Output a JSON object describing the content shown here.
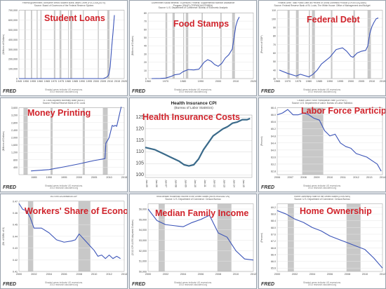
{
  "colors": {
    "line": "#3b54b8",
    "recession": "#c8c8c8",
    "title": "#d0232b",
    "hic_line": "#3a6a8a"
  },
  "fred": {
    "logo": "FRED",
    "shaded_note": "Shaded areas indicate US recessions.",
    "site": "2013 research.stlouisfed.org"
  },
  "chart_data": [
    {
      "id": "student_loans",
      "type": "line",
      "title": "Student Loans",
      "header": [
        "Federal government; consumer credit; student loans; asset, Level (FGCCSAQ027S)",
        "Source: Board of Governors of the Federal Reserve System"
      ],
      "ylabel": "(Millions of Dollars)",
      "xlim": [
        1945,
        2020
      ],
      "ylim": [
        0,
        700000
      ],
      "xticks": [
        1945,
        1950,
        1955,
        1960,
        1965,
        1970,
        1975,
        1980,
        1985,
        1990,
        1995,
        2000,
        2005,
        2010,
        2015,
        2020
      ],
      "yticks": [
        0,
        100000,
        200000,
        300000,
        400000,
        500000,
        600000,
        700000
      ],
      "ytick_labels": [
        "0",
        "100,000",
        "200,000",
        "300,000",
        "400,000",
        "500,000",
        "600,000",
        "700,000"
      ],
      "recessions": [
        [
          1948.9,
          1949.8
        ],
        [
          1953.5,
          1954.4
        ],
        [
          1957.6,
          1958.3
        ],
        [
          1960.3,
          1961.1
        ],
        [
          1969.9,
          1970.9
        ],
        [
          1973.9,
          1975.2
        ],
        [
          1980.0,
          1980.5
        ],
        [
          1981.5,
          1982.9
        ],
        [
          1990.5,
          1991.2
        ],
        [
          2001.2,
          2001.9
        ],
        [
          2007.9,
          2009.5
        ]
      ],
      "x": [
        1945,
        1965,
        1970,
        1980,
        1990,
        2000,
        2005,
        2006,
        2007,
        2008,
        2009,
        2010,
        2011,
        2012,
        2013
      ],
      "y": [
        0,
        0,
        0,
        0,
        0,
        0,
        0,
        5000,
        10000,
        20000,
        40000,
        120000,
        310000,
        470000,
        650000
      ]
    },
    {
      "id": "food_stamps",
      "type": "line",
      "title": "Food Stamps",
      "header": [
        "Government social benefits: To persons: Federal: Supplemental Nutrition Assistance",
        "Program (SNAP) (TRP6001A027NBEA)",
        "Source: U.S. Department of Commerce: Bureau of Economic Analysis"
      ],
      "ylabel": "(Billions of Dollars)",
      "xlim": [
        1960,
        2020
      ],
      "ylim": [
        0,
        80
      ],
      "xticks": [
        1960,
        1970,
        1980,
        1990,
        2000,
        2010,
        2020
      ],
      "yticks": [
        0,
        10,
        20,
        30,
        40,
        50,
        60,
        70,
        80
      ],
      "ytick_labels": [
        "0",
        "10",
        "20",
        "30",
        "40",
        "50",
        "60",
        "70",
        "80"
      ],
      "recessions": [
        [
          1969.9,
          1970.9
        ],
        [
          1973.9,
          1975.2
        ],
        [
          1980.0,
          1980.5
        ],
        [
          1981.5,
          1982.9
        ],
        [
          1990.5,
          1991.2
        ],
        [
          2001.2,
          2001.9
        ],
        [
          2007.9,
          2009.5
        ]
      ],
      "x": [
        1962,
        1967,
        1970,
        1973,
        1975,
        1978,
        1980,
        1983,
        1986,
        1989,
        1992,
        1994,
        1996,
        1998,
        2000,
        2002,
        2004,
        2006,
        2008,
        2009,
        2010,
        2011,
        2012
      ],
      "y": [
        0,
        0.2,
        0.6,
        2.5,
        4.5,
        5.5,
        8.5,
        11,
        10.5,
        11.5,
        20,
        23,
        21,
        17,
        15,
        18.5,
        25,
        29,
        36,
        50,
        64,
        71,
        75
      ]
    },
    {
      "id": "federal_debt",
      "type": "line",
      "title": "Federal Debt",
      "header": [
        "Federal Debt: Total Public Debt as Percent of Gross Domestic Product (GFDEGDQ188S)",
        "Source: Federal Reserve Bank of St. Louis; The White House: Office of Management and Budget"
      ],
      "ylabel": "(Percent of GDP)",
      "xlim": [
        1965,
        2015
      ],
      "ylim": [
        30,
        110
      ],
      "xticks": [
        1965,
        1970,
        1975,
        1980,
        1985,
        1990,
        1995,
        2000,
        2005,
        2010,
        2015
      ],
      "yticks": [
        30,
        40,
        50,
        60,
        70,
        80,
        90,
        100,
        110
      ],
      "ytick_labels": [
        "30",
        "40",
        "50",
        "60",
        "70",
        "80",
        "90",
        "100",
        "110"
      ],
      "recessions": [
        [
          1969.9,
          1970.9
        ],
        [
          1973.9,
          1975.2
        ],
        [
          1980.0,
          1980.5
        ],
        [
          1981.5,
          1982.9
        ],
        [
          1990.5,
          1991.2
        ],
        [
          2001.2,
          2001.9
        ],
        [
          2007.9,
          2009.5
        ]
      ],
      "x": [
        1966,
        1970,
        1974,
        1976,
        1980,
        1982,
        1984,
        1986,
        1990,
        1993,
        1996,
        1998,
        2000,
        2001,
        2003,
        2005,
        2007,
        2008,
        2009,
        2010,
        2011,
        2012,
        2013
      ],
      "y": [
        40,
        36,
        33,
        35,
        32,
        35,
        40,
        47,
        55,
        64,
        66,
        62,
        56,
        55,
        60,
        62,
        63,
        68,
        83,
        91,
        96,
        100,
        101
      ]
    },
    {
      "id": "money_printing",
      "type": "line",
      "title": "Money Printing",
      "header": [
        "St. Louis Adjusted Monetary Base (BASE)",
        "Source: Federal Reserve Bank of St. Louis"
      ],
      "ylabel": "(Billions of Dollars)",
      "xlim": [
        1980,
        2015
      ],
      "ylim": [
        0,
        3600
      ],
      "xticks": [
        1985,
        1990,
        1995,
        2000,
        2005,
        2010,
        2015
      ],
      "yticks": [
        400,
        800,
        1200,
        1600,
        2000,
        2400,
        2800,
        3200,
        3600
      ],
      "ytick_labels": [
        "400",
        "800",
        "1,200",
        "1,600",
        "2,000",
        "2,400",
        "2,800",
        "3,200",
        "3,600"
      ],
      "recessions": [
        [
          1981.5,
          1982.9
        ],
        [
          1990.5,
          1991.2
        ],
        [
          2001.2,
          2001.9
        ],
        [
          2007.9,
          2009.5
        ]
      ],
      "x": [
        1984,
        1990,
        1995,
        2000,
        2005,
        2008.6,
        2008.9,
        2009.5,
        2010,
        2011,
        2011.5,
        2012,
        2012.5,
        2013,
        2013.5,
        2014
      ],
      "y": [
        200,
        270,
        420,
        580,
        760,
        860,
        1700,
        1850,
        2000,
        2650,
        2600,
        2650,
        2600,
        2950,
        3300,
        3650
      ]
    },
    {
      "id": "health_insurance_costs",
      "type": "line",
      "title": "Health Insurance Costs",
      "subtitle": "Health Insurance CPI",
      "source": "(Bureau of Labor Statistics)",
      "xlim": [
        2005.0,
        2016.0
      ],
      "ylim": [
        99,
        126
      ],
      "xticks": [
        2005.0,
        2006.0,
        2007.0,
        2008.0,
        2009.0,
        2010.0,
        2011.0,
        2012.0,
        2013.0,
        2014.0,
        2015.0
      ],
      "xtick_labels": [
        "Jan-05",
        "Jan-06",
        "Jan-07",
        "Jan-08",
        "Jan-09",
        "Jan-10",
        "Jan-11",
        "Jan-12",
        "Jan-13",
        "Jan-14",
        "Jan-15"
      ],
      "yticks": [
        100,
        105,
        110,
        115,
        120,
        125
      ],
      "ytick_labels": [
        "100",
        "105",
        "110",
        "115",
        "120",
        "125"
      ],
      "recessions": [],
      "x": [
        2005.0,
        2005.5,
        2006.0,
        2006.5,
        2007.0,
        2007.5,
        2008.0,
        2008.5,
        2009.0,
        2009.5,
        2010.0,
        2010.5,
        2011.0,
        2011.5,
        2012.0,
        2012.5,
        2013.0,
        2013.5,
        2014.0,
        2014.5,
        2015.0,
        2015.5,
        2015.8
      ],
      "y": [
        112,
        111.5,
        111,
        110,
        109,
        108,
        107,
        106,
        104.5,
        104,
        104.5,
        107,
        111,
        114,
        117,
        118.5,
        120,
        121,
        122.5,
        123,
        124,
        124,
        124.5
      ]
    },
    {
      "id": "labor_force_participation",
      "type": "line",
      "title": "Labor Force Participation",
      "header": [
        "Civilian Labor Force Participation Rate (CIVPART)",
        "Source: U.S. Department of Labor: Bureau of Labor Statistics"
      ],
      "ylabel": "(Percent)",
      "xlim": [
        2006,
        2014
      ],
      "ylim": [
        62.6,
        66.4
      ],
      "xticks": [
        2006,
        2007,
        2008,
        2009,
        2010,
        2011,
        2012,
        2013,
        2014
      ],
      "yticks": [
        62.8,
        63.2,
        63.6,
        64.0,
        64.4,
        64.8,
        65.2,
        65.6,
        66.0,
        66.4
      ],
      "ytick_labels": [
        "62.8",
        "63.2",
        "63.6",
        "64.0",
        "64.4",
        "64.8",
        "65.2",
        "65.6",
        "66.0",
        "66.4"
      ],
      "recessions": [
        [
          2007.9,
          2009.5
        ]
      ],
      "x": [
        2006.0,
        2006.4,
        2006.8,
        2007.2,
        2007.6,
        2008.0,
        2008.4,
        2008.8,
        2009.2,
        2009.6,
        2010.0,
        2010.4,
        2010.8,
        2011.2,
        2011.6,
        2012.0,
        2012.4,
        2012.8,
        2013.2,
        2013.6,
        2013.9
      ],
      "y": [
        66.0,
        66.1,
        66.3,
        66.0,
        66.0,
        66.1,
        66.0,
        65.8,
        65.7,
        65.1,
        64.8,
        64.9,
        64.4,
        64.2,
        64.1,
        63.8,
        63.7,
        63.6,
        63.4,
        63.2,
        62.8
      ]
    },
    {
      "id": "workers_share",
      "type": "line",
      "title": "Workers' Share of Economy",
      "header": [
        "W270RE1A156NBEA/GDP"
      ],
      "ylabel": "(Bil. of $/Bil. of $)",
      "xlim": [
        2000,
        2014
      ],
      "ylim": [
        0.41,
        0.47
      ],
      "xticks": [
        2000,
        2002,
        2004,
        2006,
        2008,
        2010,
        2012,
        2014
      ],
      "yticks": [
        0.41,
        0.42,
        0.43,
        0.44,
        0.45,
        0.46,
        0.47
      ],
      "ytick_labels": [
        "0.41",
        "0.42",
        "0.43",
        "0.44",
        "0.45",
        "0.46",
        "0.47"
      ],
      "recessions": [
        [
          2001.2,
          2001.9
        ],
        [
          2007.9,
          2009.5
        ]
      ],
      "x": [
        2000,
        2000.5,
        2001,
        2001.5,
        2002,
        2003,
        2004,
        2005,
        2006,
        2007,
        2007.5,
        2008,
        2009,
        2010,
        2010.5,
        2011,
        2011.5,
        2012,
        2012.5,
        2013,
        2013.5
      ],
      "y": [
        0.468,
        0.463,
        0.462,
        0.456,
        0.447,
        0.447,
        0.443,
        0.437,
        0.435,
        0.436,
        0.437,
        0.442,
        0.435,
        0.428,
        0.423,
        0.424,
        0.421,
        0.424,
        0.421,
        0.423,
        0.421
      ]
    },
    {
      "id": "median_family_income",
      "type": "line",
      "title": "Median Family Income",
      "header": [
        "Real Median Household Income in the United States (MEHOINUSA672N)",
        "Source: U.S. Department of Commerce: Census Bureau"
      ],
      "ylabel": "(2012 CPI-U-RS Adjusted Dollars)",
      "xlim": [
        2000,
        2012
      ],
      "ylim": [
        50000,
        56500
      ],
      "xticks": [
        2000,
        2002,
        2004,
        2006,
        2008,
        2010,
        2012
      ],
      "yticks": [
        50000,
        51000,
        52000,
        53000,
        54000,
        55000,
        56000
      ],
      "ytick_labels": [
        "50,000",
        "51,000",
        "52,000",
        "53,000",
        "54,000",
        "55,000",
        "56,000"
      ],
      "recessions": [
        [
          2001.2,
          2001.9
        ],
        [
          2007.9,
          2009.5
        ]
      ],
      "x": [
        2000,
        2001,
        2002,
        2003,
        2004,
        2005,
        2006,
        2007,
        2008,
        2009,
        2010,
        2011,
        2012
      ],
      "y": [
        56000,
        54900,
        54500,
        54400,
        54300,
        54700,
        55000,
        55400,
        53700,
        53300,
        52000,
        51200,
        51100
      ]
    },
    {
      "id": "home_ownership",
      "type": "line",
      "title": "Home Ownership",
      "header": [
        "Home Ownership Rate for the United States (USHOWN)",
        "Source: U.S. Department of Commerce: Census Bureau"
      ],
      "ylabel": "(Percent)",
      "xlim": [
        2000,
        2012
      ],
      "ylim": [
        65.4,
        69.4
      ],
      "xticks": [
        2000,
        2002,
        2004,
        2006,
        2008,
        2010,
        2012
      ],
      "yticks": [
        65.6,
        66.0,
        66.4,
        66.8,
        67.2,
        67.6,
        68.0,
        68.4,
        68.8,
        69.2
      ],
      "ytick_labels": [
        "65.6",
        "66.0",
        "66.4",
        "66.8",
        "67.2",
        "67.6",
        "68.0",
        "68.4",
        "68.8",
        "69.2"
      ],
      "recessions": [
        [
          2001.2,
          2001.9
        ],
        [
          2007.9,
          2009.5
        ]
      ],
      "x": [
        2000,
        2001,
        2002,
        2003,
        2004,
        2005,
        2006,
        2007,
        2008,
        2009,
        2010,
        2011,
        2012
      ],
      "y": [
        69.0,
        68.8,
        68.5,
        68.3,
        68.0,
        67.8,
        67.5,
        67.3,
        67.1,
        66.9,
        66.7,
        66.2,
        65.6
      ]
    }
  ]
}
